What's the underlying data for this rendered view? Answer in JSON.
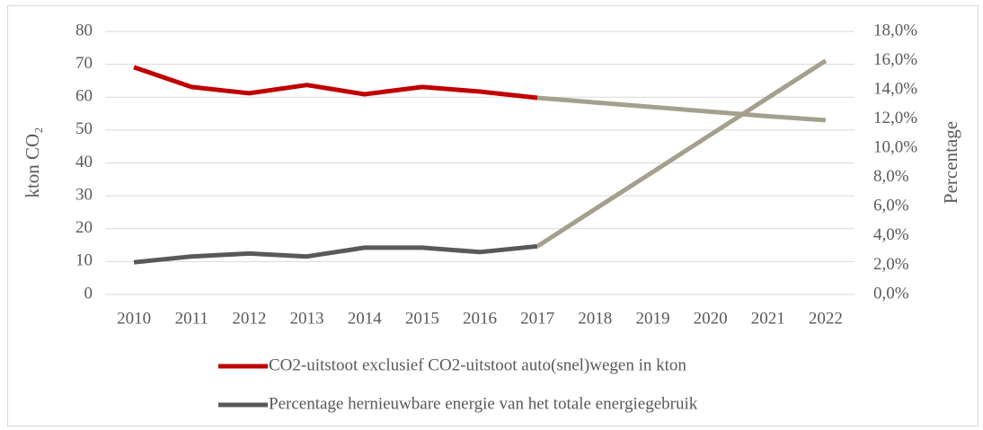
{
  "chart_data": {
    "type": "line",
    "categories": [
      "2010",
      "2011",
      "2012",
      "2013",
      "2014",
      "2015",
      "2016",
      "2017",
      "2018",
      "2019",
      "2020",
      "2021",
      "2022"
    ],
    "ylabel": "kton CO₂",
    "y2label": "Percentage",
    "ylim": [
      0,
      80
    ],
    "yticks": [
      0,
      10,
      20,
      30,
      40,
      50,
      60,
      70,
      80
    ],
    "y2lim": [
      0,
      18
    ],
    "y2ticks": [
      {
        "value": 0,
        "label": "0,0%"
      },
      {
        "value": 2,
        "label": "2,0%"
      },
      {
        "value": 4,
        "label": "4,0%"
      },
      {
        "value": 6,
        "label": "6,0%"
      },
      {
        "value": 8,
        "label": "8,0%"
      },
      {
        "value": 10,
        "label": "10,0%"
      },
      {
        "value": 12,
        "label": "12,0%"
      },
      {
        "value": 14,
        "label": "14,0%"
      },
      {
        "value": 16,
        "label": "16,0%"
      },
      {
        "value": 18,
        "label": "18,0%"
      }
    ],
    "grid": true,
    "legend": "bottom",
    "series": [
      {
        "name": "CO2-uitstoot exclusief CO2-uitstoot auto(snel)wegen in kton",
        "color": "#c00000",
        "values": [
          69.1,
          63.1,
          61.2,
          63.7,
          60.9,
          63.1,
          61.7,
          59.8,
          null,
          null,
          null,
          null,
          null
        ]
      },
      {
        "name": "Percentage hernieuwbare energie van het totale energiegebruik",
        "color": "#595959",
        "axis": "y2",
        "values": [
          2.2,
          2.6,
          2.8,
          2.6,
          3.2,
          3.2,
          2.9,
          3.3,
          null,
          null,
          null,
          null,
          null
        ]
      },
      {
        "color": "#a59f8e",
        "values": [
          null,
          null,
          null,
          null,
          null,
          null,
          null,
          59.8,
          58.4,
          57.0,
          55.6,
          54.2,
          53.0
        ]
      },
      {
        "color": "#a59f8e",
        "axis": "y2",
        "values": [
          null,
          null,
          null,
          null,
          null,
          null,
          null,
          3.3,
          5.84,
          8.38,
          10.92,
          13.46,
          16.0
        ]
      }
    ]
  }
}
